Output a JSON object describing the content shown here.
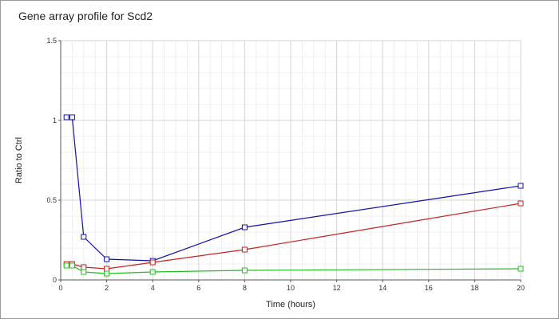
{
  "chart_data": {
    "type": "line",
    "title": "Gene array profile for Scd2",
    "xlabel": "Time (hours)",
    "ylabel": "Ratio to Ctrl",
    "xlim": [
      0,
      20
    ],
    "ylim": [
      0,
      1.5
    ],
    "x_ticks": [
      0,
      2,
      4,
      6,
      8,
      10,
      12,
      14,
      16,
      18,
      20
    ],
    "y_ticks": [
      0,
      0.5,
      1,
      1.5
    ],
    "x_tick_labels": [
      "0",
      "2",
      "4",
      "6",
      "8",
      "10",
      "12",
      "14",
      "16",
      "18",
      "20"
    ],
    "y_tick_labels": [
      "0",
      "0.5",
      "1",
      "1.5"
    ],
    "grid": true,
    "marker": "square",
    "series": [
      {
        "color": "#1010a8",
        "x": [
          0.25,
          0.5,
          1,
          2,
          4,
          8,
          20
        ],
        "y": [
          1.02,
          1.02,
          0.27,
          0.13,
          0.12,
          0.33,
          0.59
        ]
      },
      {
        "color": "#c82020",
        "x": [
          0.25,
          0.5,
          1,
          2,
          4,
          8,
          20
        ],
        "y": [
          0.1,
          0.1,
          0.08,
          0.07,
          0.11,
          0.19,
          0.48
        ]
      },
      {
        "color": "#20c020",
        "x": [
          0.25,
          0.5,
          1,
          2,
          4,
          8,
          20
        ],
        "y": [
          0.09,
          0.09,
          0.05,
          0.04,
          0.05,
          0.06,
          0.07
        ]
      }
    ]
  }
}
